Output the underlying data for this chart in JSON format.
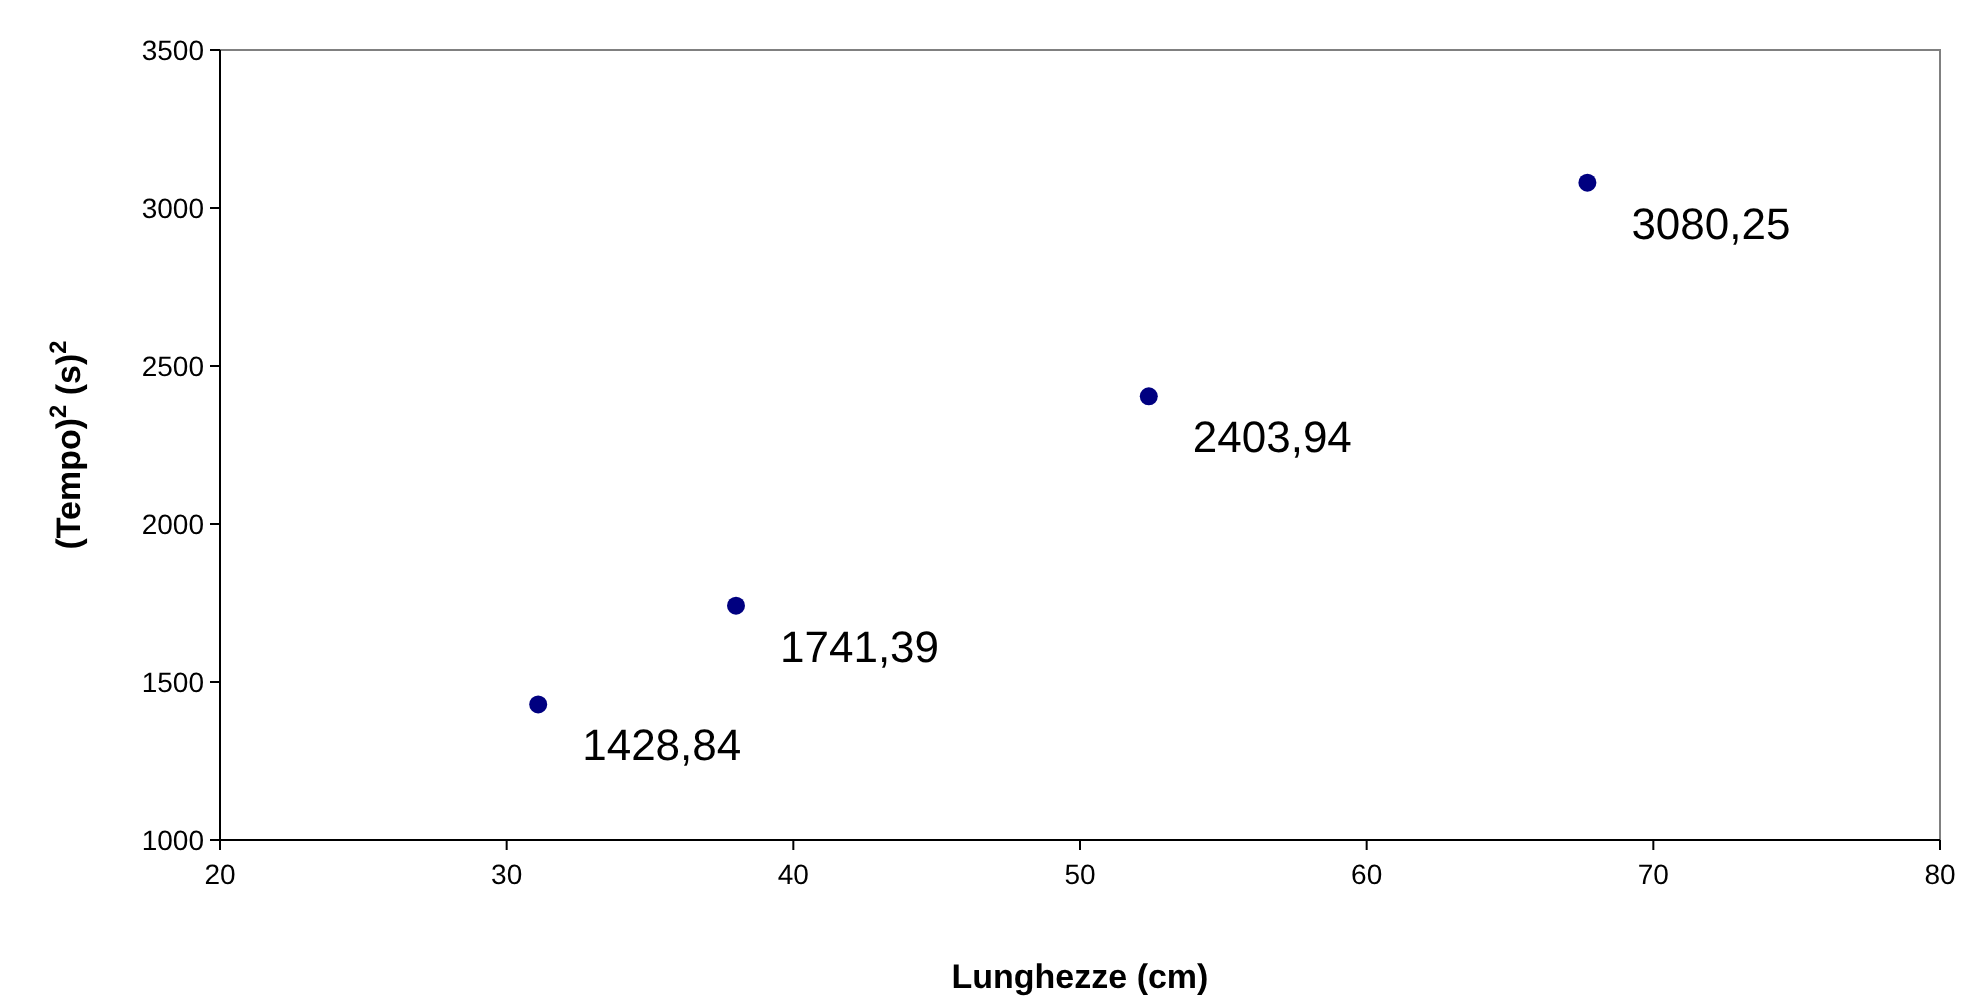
{
  "chart_data": {
    "type": "scatter",
    "xlabel": "Lunghezze (cm)",
    "ylabel": "(Tempo)$^{2}$ (s)$^{2}$",
    "x": [
      31.1,
      38.0,
      52.4,
      67.7
    ],
    "values": [
      1428.84,
      1741.39,
      2403.94,
      3080.25
    ],
    "value_labels": [
      "1428,84",
      "1741,39",
      "2403,94",
      "3080,25"
    ],
    "color": "#000080",
    "marker": "circle",
    "xlim": [
      20,
      80
    ],
    "xticks": [
      20,
      30,
      40,
      50,
      60,
      70,
      80
    ],
    "ylim": [
      1000,
      3500
    ],
    "yticks": [
      1000,
      1500,
      2000,
      2500,
      3000,
      3500
    ],
    "grid": false
  }
}
